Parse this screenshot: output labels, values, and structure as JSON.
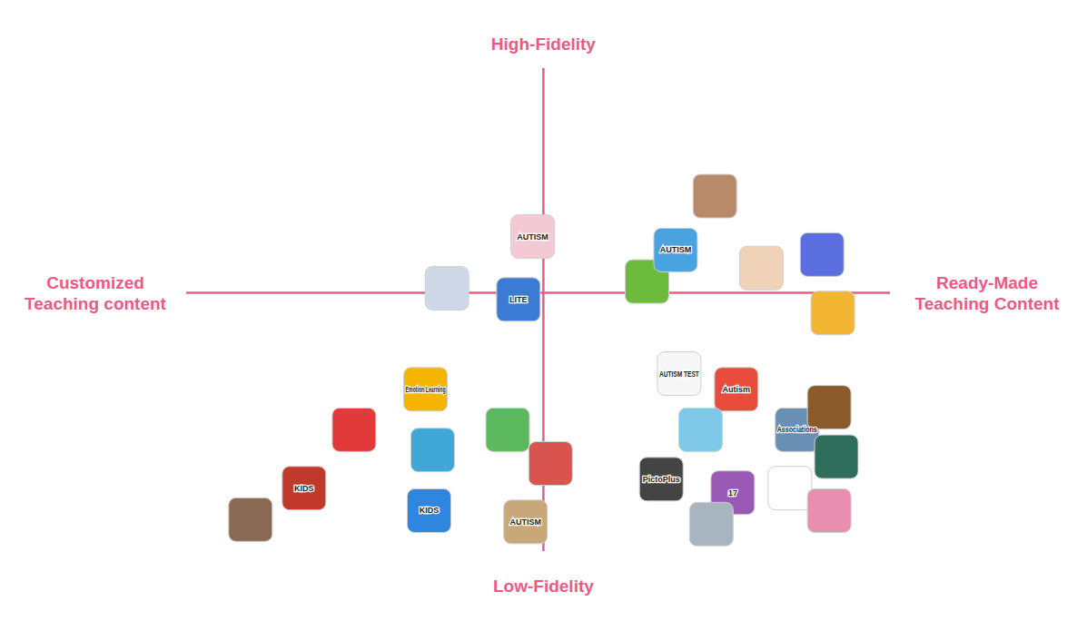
{
  "chart_data": {
    "type": "scatter",
    "axis_labels": {
      "top": [
        "High-Fidelity"
      ],
      "bottom": [
        "Low-Fidelity"
      ],
      "left": [
        "Customized",
        "Teaching content"
      ],
      "right": [
        "Ready-Made",
        "Teaching Content"
      ]
    },
    "xlim": [
      -1,
      0.97
    ],
    "ylim": [
      -1.15,
      1
    ],
    "tick_labels": false,
    "grid": false,
    "marker": "square",
    "x": [
      -0.03,
      -0.27,
      -0.07,
      0.29,
      0.37,
      0.48,
      0.61,
      0.78,
      0.81,
      -0.33,
      -0.53,
      -0.67,
      -0.82,
      -0.31,
      -0.32,
      -0.1,
      0.02,
      -0.05,
      0.38,
      0.54,
      0.44,
      0.71,
      0.8,
      0.82,
      0.33,
      0.53,
      0.69,
      0.8,
      0.47
    ],
    "values": [
      0.25,
      0.02,
      -0.03,
      0.05,
      0.19,
      0.43,
      0.11,
      0.17,
      -0.09,
      -0.43,
      -0.61,
      -0.87,
      -1.01,
      -0.7,
      -0.97,
      -0.61,
      -0.76,
      -1.02,
      -0.36,
      -0.43,
      -0.61,
      -0.61,
      -0.51,
      -0.73,
      -0.83,
      -0.89,
      -0.87,
      -0.97,
      -1.03
    ],
    "labels": [
      "AUTISM",
      null,
      "LITE",
      null,
      "AUTISM",
      null,
      null,
      null,
      null,
      "Emotion Learning",
      null,
      "KIDS",
      null,
      null,
      "KIDS",
      null,
      null,
      "AUTISM",
      "AUTISM TEST",
      "Autism",
      null,
      "Associations",
      null,
      null,
      "PictoPlus",
      "17",
      null,
      null,
      null
    ],
    "colors": [
      "#f3c9d6",
      "#cfd8e6",
      "#3b7bd4",
      "#6dbb3c",
      "#4aa3df",
      "#b98a6a",
      "#f0d2b8",
      "#5a6ee0",
      "#f2b632",
      "#f5b400",
      "#e03a3a",
      "#c0392b",
      "#8a6a55",
      "#3fa8d8",
      "#2e86de",
      "#5cb85c",
      "#d9534f",
      "#c8a77a",
      "#f7f7f7",
      "#e74c3c",
      "#7fc8e8",
      "#6a8fb5",
      "#8b5a2b",
      "#2f6e5a",
      "#444444",
      "#9b59b6",
      "#ffffff",
      "#e88fb0",
      "#a8b4c0"
    ]
  }
}
